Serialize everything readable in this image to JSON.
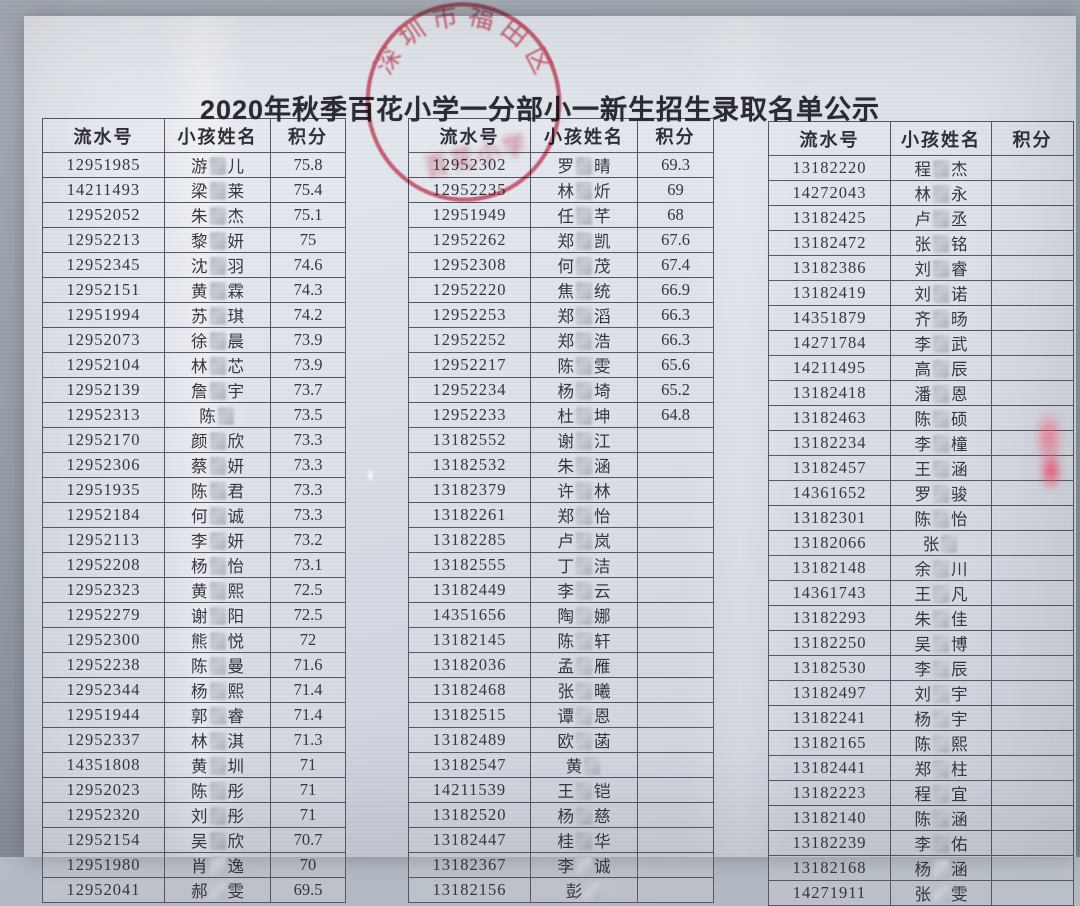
{
  "title": "2020年秋季百花小学一分部小一新生招生录取名单公示",
  "stamp": {
    "arc_text": "深圳市福田区",
    "bottom_text": "百花小学"
  },
  "columns": [
    "流水号",
    "小孩姓名",
    "积分"
  ],
  "colors": {
    "stamp_red": "#d84b60",
    "ink": "#34353d",
    "paper": "#dbe0e9",
    "background": "#a7aeb8"
  },
  "tables": [
    {
      "rows": [
        [
          "12951985",
          "游",
          "儿",
          "75.8"
        ],
        [
          "14211493",
          "梁",
          "莱",
          "75.4"
        ],
        [
          "12952052",
          "朱",
          "杰",
          "75.1"
        ],
        [
          "12952213",
          "黎",
          "妍",
          "75"
        ],
        [
          "12952345",
          "沈",
          "羽",
          "74.6"
        ],
        [
          "12952151",
          "黄",
          "霖",
          "74.3"
        ],
        [
          "12951994",
          "苏",
          "琪",
          "74.2"
        ],
        [
          "12952073",
          "徐",
          "晨",
          "73.9"
        ],
        [
          "12952104",
          "林",
          "芯",
          "73.9"
        ],
        [
          "12952139",
          "詹",
          "宇",
          "73.7"
        ],
        [
          "12952313",
          "陈",
          "",
          "73.5"
        ],
        [
          "12952170",
          "颜",
          "欣",
          "73.3"
        ],
        [
          "12952306",
          "蔡",
          "妍",
          "73.3"
        ],
        [
          "12951935",
          "陈",
          "君",
          "73.3"
        ],
        [
          "12952184",
          "何",
          "诚",
          "73.3"
        ],
        [
          "12952113",
          "李",
          "妍",
          "73.2"
        ],
        [
          "12952208",
          "杨",
          "怡",
          "73.1"
        ],
        [
          "12952323",
          "黄",
          "熙",
          "72.5"
        ],
        [
          "12952279",
          "谢",
          "阳",
          "72.5"
        ],
        [
          "12952300",
          "熊",
          "悦",
          "72"
        ],
        [
          "12952238",
          "陈",
          "曼",
          "71.6"
        ],
        [
          "12952344",
          "杨",
          "熙",
          "71.4"
        ],
        [
          "12951944",
          "郭",
          "睿",
          "71.4"
        ],
        [
          "12952337",
          "林",
          "淇",
          "71.3"
        ],
        [
          "14351808",
          "黄",
          "圳",
          "71"
        ],
        [
          "12952023",
          "陈",
          "彤",
          "71"
        ],
        [
          "12952320",
          "刘",
          "彤",
          "71"
        ],
        [
          "12952154",
          "吴",
          "欣",
          "70.7"
        ],
        [
          "12951980",
          "肖",
          "逸",
          "70"
        ],
        [
          "12952041",
          "郝",
          "雯",
          "69.5"
        ]
      ]
    },
    {
      "rows": [
        [
          "12952302",
          "罗",
          "晴",
          "69.3"
        ],
        [
          "12952235",
          "林",
          "炘",
          "69"
        ],
        [
          "12951949",
          "任",
          "芊",
          "68"
        ],
        [
          "12952262",
          "郑",
          "凯",
          "67.6"
        ],
        [
          "12952308",
          "何",
          "茂",
          "67.4"
        ],
        [
          "12952220",
          "焦",
          "统",
          "66.9"
        ],
        [
          "12952253",
          "郑",
          "滔",
          "66.3"
        ],
        [
          "12952252",
          "郑",
          "浩",
          "66.3"
        ],
        [
          "12952217",
          "陈",
          "雯",
          "65.6"
        ],
        [
          "12952234",
          "杨",
          "埼",
          "65.2"
        ],
        [
          "12952233",
          "杜",
          "坤",
          "64.8"
        ],
        [
          "13182552",
          "谢",
          "江",
          ""
        ],
        [
          "13182532",
          "朱",
          "涵",
          ""
        ],
        [
          "13182379",
          "许",
          "林",
          ""
        ],
        [
          "13182261",
          "郑",
          "怡",
          ""
        ],
        [
          "13182285",
          "卢",
          "岚",
          ""
        ],
        [
          "13182555",
          "丁",
          "洁",
          ""
        ],
        [
          "13182449",
          "李",
          "云",
          ""
        ],
        [
          "14351656",
          "陶",
          "娜",
          ""
        ],
        [
          "13182145",
          "陈",
          "轩",
          ""
        ],
        [
          "13182036",
          "孟",
          "雁",
          ""
        ],
        [
          "13182468",
          "张",
          "曦",
          ""
        ],
        [
          "13182515",
          "谭",
          "恩",
          ""
        ],
        [
          "13182489",
          "欧",
          "菡",
          ""
        ],
        [
          "13182547",
          "黄",
          "",
          ""
        ],
        [
          "14211539",
          "王",
          "铠",
          ""
        ],
        [
          "13182520",
          "杨",
          "慈",
          ""
        ],
        [
          "13182447",
          "桂",
          "华",
          ""
        ],
        [
          "13182367",
          "李",
          "诚",
          ""
        ],
        [
          "13182156",
          "彭",
          "",
          ""
        ]
      ]
    },
    {
      "rows": [
        [
          "13182220",
          "程",
          "杰",
          ""
        ],
        [
          "14272043",
          "林",
          "永",
          ""
        ],
        [
          "13182425",
          "卢",
          "丞",
          ""
        ],
        [
          "13182472",
          "张",
          "铭",
          ""
        ],
        [
          "13182386",
          "刘",
          "睿",
          ""
        ],
        [
          "13182419",
          "刘",
          "诺",
          ""
        ],
        [
          "14351879",
          "齐",
          "旸",
          ""
        ],
        [
          "14271784",
          "李",
          "武",
          ""
        ],
        [
          "14211495",
          "高",
          "辰",
          ""
        ],
        [
          "13182418",
          "潘",
          "恩",
          ""
        ],
        [
          "13182463",
          "陈",
          "硕",
          ""
        ],
        [
          "13182234",
          "李",
          "橦",
          ""
        ],
        [
          "13182457",
          "王",
          "涵",
          ""
        ],
        [
          "14361652",
          "罗",
          "骏",
          ""
        ],
        [
          "13182301",
          "陈",
          "怡",
          ""
        ],
        [
          "13182066",
          "张",
          "",
          ""
        ],
        [
          "13182148",
          "余",
          "川",
          ""
        ],
        [
          "14361743",
          "王",
          "凡",
          ""
        ],
        [
          "13182293",
          "朱",
          "佳",
          ""
        ],
        [
          "13182250",
          "吴",
          "博",
          ""
        ],
        [
          "13182530",
          "李",
          "辰",
          ""
        ],
        [
          "13182497",
          "刘",
          "宇",
          ""
        ],
        [
          "13182241",
          "杨",
          "宇",
          ""
        ],
        [
          "13182165",
          "陈",
          "熙",
          ""
        ],
        [
          "13182441",
          "郑",
          "柱",
          ""
        ],
        [
          "13182223",
          "程",
          "宜",
          ""
        ],
        [
          "13182140",
          "陈",
          "涵",
          ""
        ],
        [
          "13182239",
          "李",
          "佑",
          ""
        ],
        [
          "13182168",
          "杨",
          "涵",
          ""
        ],
        [
          "14271911",
          "张",
          "雯",
          ""
        ]
      ]
    }
  ]
}
